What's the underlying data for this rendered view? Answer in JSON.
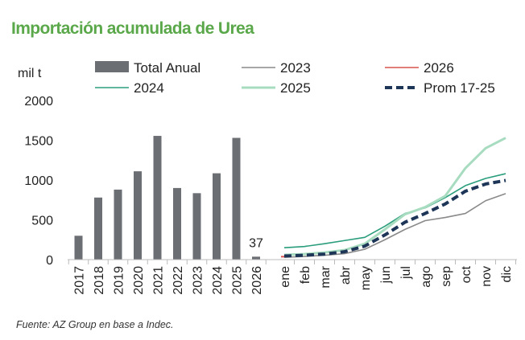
{
  "title": "Importación acumulada de Urea",
  "source": "Fuente: AZ Group en base a Indec.",
  "chart_data": {
    "type": "bar+line",
    "title": "Importación acumulada de Urea",
    "ylabel": "mil t",
    "ylim": [
      0,
      2000
    ],
    "yticks": [
      0,
      500,
      1000,
      1500,
      2000
    ],
    "grid": false,
    "legend_position": "top",
    "bars": {
      "name": "Total Anual",
      "color": "#6b6e73",
      "categories": [
        "2017",
        "2018",
        "2019",
        "2020",
        "2021",
        "2022",
        "2023",
        "2024",
        "2025",
        "2026"
      ],
      "values": [
        300,
        780,
        880,
        1110,
        1555,
        900,
        835,
        1085,
        1530,
        37
      ],
      "annotation": {
        "category": "2026",
        "label": "37"
      }
    },
    "months": [
      "ene",
      "feb",
      "mar",
      "abr",
      "may",
      "jun",
      "jul",
      "ago",
      "sep",
      "oct",
      "nov",
      "dic"
    ],
    "series": [
      {
        "name": "2023",
        "color": "#8a8a8a",
        "style": "solid",
        "values": [
          30,
          40,
          55,
          75,
          130,
          250,
          380,
          490,
          530,
          580,
          740,
          830
        ]
      },
      {
        "name": "2026",
        "color": "#d9534f",
        "style": "solid",
        "values": [
          37
        ]
      },
      {
        "name": "2024",
        "color": "#2a9d7c",
        "style": "solid",
        "values": [
          150,
          165,
          200,
          240,
          280,
          420,
          580,
          650,
          780,
          930,
          1020,
          1080
        ]
      },
      {
        "name": "2025",
        "color": "#a8dcc0",
        "style": "solid",
        "values": [
          60,
          70,
          90,
          120,
          200,
          380,
          570,
          660,
          800,
          1150,
          1400,
          1530
        ]
      },
      {
        "name": "Prom 17-25",
        "color": "#1d3557",
        "style": "dashed",
        "values": [
          45,
          55,
          70,
          100,
          170,
          310,
          470,
          580,
          700,
          860,
          950,
          995
        ]
      }
    ],
    "legend": [
      {
        "label": "Total Anual",
        "kind": "bar",
        "color": "#6b6e73"
      },
      {
        "label": "2023",
        "kind": "line",
        "color": "#8a8a8a"
      },
      {
        "label": "2026",
        "kind": "line",
        "color": "#d9534f"
      },
      {
        "label": "2024",
        "kind": "line",
        "color": "#2a9d7c"
      },
      {
        "label": "2025",
        "kind": "line",
        "color": "#a8dcc0"
      },
      {
        "label": "Prom 17-25",
        "kind": "dashed",
        "color": "#1d3557"
      }
    ]
  }
}
